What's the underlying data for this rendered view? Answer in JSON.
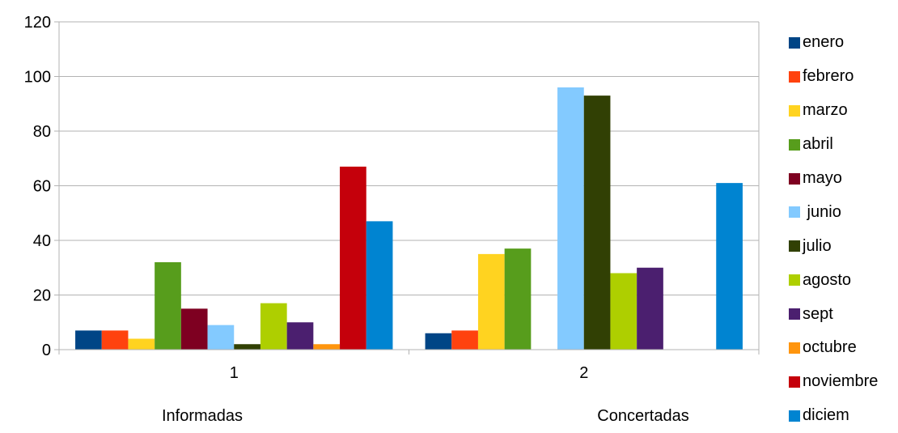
{
  "chart_data": {
    "type": "bar",
    "categories": [
      "1",
      "2"
    ],
    "category_captions": [
      "Informadas",
      "Concertadas"
    ],
    "ylim": [
      0,
      120
    ],
    "y_ticks": [
      "0",
      "20",
      "40",
      "60",
      "80",
      "100",
      "120"
    ],
    "grid": "horizontal",
    "legend_position": "right",
    "series": [
      {
        "name": "enero",
        "color": "#004586",
        "values": [
          7,
          6
        ]
      },
      {
        "name": "febrero",
        "color": "#ff420e",
        "values": [
          7,
          7
        ]
      },
      {
        "name": "marzo",
        "color": "#ffd320",
        "values": [
          4,
          35
        ]
      },
      {
        "name": "abril",
        "color": "#579d1c",
        "values": [
          32,
          37
        ]
      },
      {
        "name": "mayo",
        "color": "#7e0021",
        "values": [
          15,
          0
        ]
      },
      {
        "name": " junio",
        "color": "#83caff",
        "values": [
          9,
          96
        ]
      },
      {
        "name": "julio",
        "color": "#314004",
        "values": [
          2,
          93
        ]
      },
      {
        "name": "agosto",
        "color": "#aecf00",
        "values": [
          17,
          28
        ]
      },
      {
        "name": "sept",
        "color": "#4b1f6f",
        "values": [
          10,
          30
        ]
      },
      {
        "name": "octubre",
        "color": "#ff950e",
        "values": [
          2,
          0
        ]
      },
      {
        "name": "noviembre",
        "color": "#c5000b",
        "values": [
          67,
          0
        ]
      },
      {
        "name": "diciem",
        "color": "#0084d1",
        "values": [
          47,
          61
        ]
      }
    ]
  }
}
